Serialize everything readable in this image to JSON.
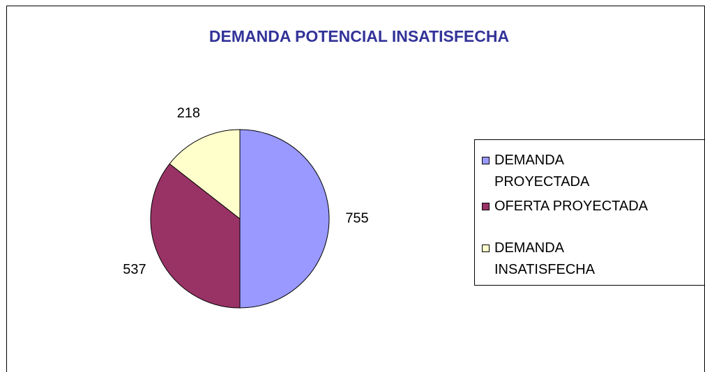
{
  "chart_data": {
    "type": "pie",
    "title": "DEMANDA POTENCIAL INSATISFECHA",
    "categories": [
      "DEMANDA PROYECTADA",
      "OFERTA PROYECTADA",
      "DEMANDA INSATISFECHA"
    ],
    "values": [
      755,
      537,
      218
    ],
    "colors": [
      "#9999ff",
      "#993366",
      "#ffffcc"
    ],
    "legend": "right"
  }
}
